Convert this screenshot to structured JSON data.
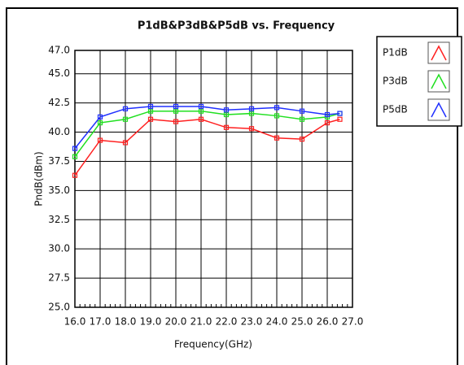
{
  "chart_data": {
    "type": "line",
    "title": "P1dB&P3dB&P5dB vs. Frequency",
    "xlabel": "Frequency(GHz)",
    "ylabel": "PndB(dBm)",
    "x": [
      16,
      17,
      18,
      19,
      20,
      21,
      22,
      23,
      24,
      25,
      26,
      26.5
    ],
    "series": [
      {
        "name": "P1dB",
        "color": "#ff2020",
        "values": [
          36.3,
          39.3,
          39.1,
          41.1,
          40.9,
          41.1,
          40.4,
          40.3,
          39.5,
          39.4,
          40.8,
          41.1
        ]
      },
      {
        "name": "P3dB",
        "color": "#20e020",
        "values": [
          37.9,
          40.8,
          41.1,
          41.8,
          41.8,
          41.8,
          41.5,
          41.6,
          41.4,
          41.1,
          41.3,
          41.6
        ]
      },
      {
        "name": "P5dB",
        "color": "#2030ff",
        "values": [
          38.6,
          41.3,
          42.0,
          42.2,
          42.2,
          42.2,
          41.9,
          42.0,
          42.1,
          41.8,
          41.5,
          41.6
        ]
      }
    ],
    "xlim": [
      16,
      27
    ],
    "xticks": [
      {
        "value": 16,
        "label": "16.0"
      },
      {
        "value": 17,
        "label": "17.0"
      },
      {
        "value": 18,
        "label": "18.0"
      },
      {
        "value": 19,
        "label": "19.0"
      },
      {
        "value": 20,
        "label": "20.0"
      },
      {
        "value": 21,
        "label": "21.0"
      },
      {
        "value": 22,
        "label": "22.0"
      },
      {
        "value": 23,
        "label": "23.0"
      },
      {
        "value": 24,
        "label": "24.0"
      },
      {
        "value": 25,
        "label": "25.0"
      },
      {
        "value": 26,
        "label": "26.0"
      },
      {
        "value": 27,
        "label": "27.0"
      }
    ],
    "ylim": [
      25,
      47
    ],
    "yticks": [
      {
        "value": 25,
        "label": "25.0"
      },
      27.5,
      {
        "value": 30,
        "label": "30.0"
      },
      32.5,
      {
        "value": 35,
        "label": "35.0"
      },
      37.5,
      {
        "value": 40,
        "label": "40.0"
      },
      42.5,
      {
        "value": 45,
        "label": "45.0"
      },
      {
        "value": 47,
        "label": "47.0"
      }
    ],
    "grid": true,
    "legend": "right"
  }
}
